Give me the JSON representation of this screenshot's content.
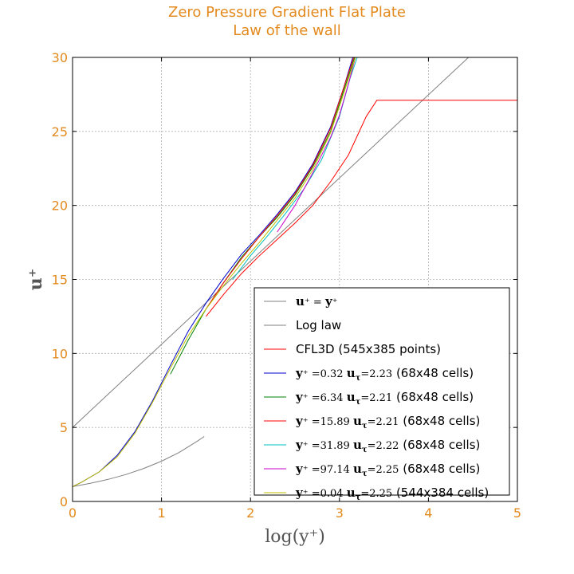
{
  "chart_data": {
    "type": "line",
    "title": "Zero Pressure Gradient Flat Plate",
    "subtitle": "Law of the wall",
    "xlabel": "log(y⁺)",
    "ylabel": "u⁺",
    "xlim": [
      0,
      5
    ],
    "ylim": [
      0,
      30
    ],
    "x_ticks": [
      "0",
      "1",
      "2",
      "3",
      "4",
      "5"
    ],
    "y_ticks": [
      "0",
      "5",
      "10",
      "15",
      "20",
      "25",
      "30"
    ],
    "grid": true,
    "legend_position": "bottom-right",
    "accent_color": "#e38a1e",
    "series": [
      {
        "name": "u⁺ = y⁺",
        "legend_math": true,
        "legend_main": "u",
        "legend_rest": "⁺ = ",
        "legend_main2": "y",
        "legend_rest2": "⁺",
        "color": "#808080",
        "x": [
          0,
          0.2,
          0.4,
          0.6,
          0.8,
          1.0,
          1.2,
          1.4,
          1.48
        ],
        "y": [
          1.0,
          1.22,
          1.49,
          1.82,
          2.23,
          2.72,
          3.32,
          4.06,
          4.39
        ]
      },
      {
        "name": "Log law",
        "color": "#808080",
        "x": [
          0,
          4.45
        ],
        "y": [
          5.0,
          30.0
        ]
      },
      {
        "name": "CFL3D (545x385 points)",
        "color": "#ff0000",
        "x": [
          1.5,
          1.7,
          1.9,
          2.1,
          2.3,
          2.5,
          2.7,
          2.9,
          3.1,
          3.3,
          3.42,
          3.5,
          4.0,
          5.0
        ],
        "y": [
          12.5,
          14.0,
          15.4,
          16.6,
          17.7,
          18.8,
          20.0,
          21.6,
          23.4,
          26.0,
          27.1,
          27.1,
          27.1,
          27.1
        ]
      },
      {
        "name": "y⁺ =0.32 uτ =2.23 (68x48 cells)",
        "legend_math": true,
        "legend_main": "y",
        "legend_rest": "⁺ =0.32 ",
        "legend_main2": "u",
        "legend_sub": "τ",
        "legend_rest2": "=2.23",
        "legend_tail": " (68x48 cells)",
        "color": "#0000cc",
        "x": [
          0,
          0.1,
          0.3,
          0.5,
          0.7,
          0.9,
          1.1,
          1.3,
          1.5,
          1.7,
          1.9,
          2.1,
          2.3,
          2.5,
          2.7,
          2.9,
          3.05,
          3.15
        ],
        "y": [
          1.0,
          1.3,
          2.0,
          3.1,
          4.7,
          6.8,
          9.2,
          11.5,
          13.4,
          15.1,
          16.7,
          18.0,
          19.4,
          20.9,
          22.8,
          25.3,
          28.0,
          30.0
        ]
      },
      {
        "name": "y⁺ =6.34 uτ =2.21 (68x48 cells)",
        "legend_math": true,
        "legend_main": "y",
        "legend_rest": "⁺ =6.34 ",
        "legend_main2": "u",
        "legend_sub": "τ",
        "legend_rest2": "=2.21",
        "legend_tail": " (68x48 cells)",
        "color": "#008000",
        "x": [
          1.1,
          1.3,
          1.5,
          1.7,
          1.9,
          2.1,
          2.3,
          2.5,
          2.7,
          2.9,
          3.05,
          3.17
        ],
        "y": [
          8.6,
          10.9,
          13.0,
          14.8,
          16.5,
          17.9,
          19.2,
          20.7,
          22.6,
          25.0,
          27.8,
          30.0
        ]
      },
      {
        "name": "y⁺ =15.89 uτ =2.21 (68x48 cells)",
        "legend_math": true,
        "legend_main": "y",
        "legend_rest": "⁺ =15.89 ",
        "legend_main2": "u",
        "legend_sub": "τ",
        "legend_rest2": "=2.21",
        "legend_tail": " (68x48 cells)",
        "color": "#ff0000",
        "x": [
          1.5,
          1.7,
          1.9,
          2.1,
          2.3,
          2.5,
          2.7,
          2.9,
          3.05,
          3.16
        ],
        "y": [
          13.0,
          14.8,
          16.4,
          17.9,
          19.3,
          20.8,
          22.7,
          25.2,
          28.0,
          30.0
        ]
      },
      {
        "name": "y⁺ =31.89 uτ =2.22 (68x48 cells)",
        "legend_math": true,
        "legend_main": "y",
        "legend_rest": "⁺ =31.89 ",
        "legend_main2": "u",
        "legend_sub": "τ",
        "legend_rest2": "=2.22",
        "legend_tail": " (68x48 cells)",
        "color": "#00bfbf",
        "x": [
          1.8,
          2.0,
          2.2,
          2.4,
          2.6,
          2.8,
          3.0,
          3.12,
          3.2
        ],
        "y": [
          15.0,
          16.6,
          18.0,
          19.5,
          21.1,
          23.1,
          26.0,
          28.6,
          30.0
        ]
      },
      {
        "name": "y⁺ =97.14 uτ =2.25 (68x48 cells)",
        "legend_math": true,
        "legend_main": "y",
        "legend_rest": "⁺ =97.14 ",
        "legend_main2": "u",
        "legend_sub": "τ",
        "legend_rest2": "=2.25",
        "legend_tail": " (68x48 cells)",
        "color": "#cc00cc",
        "x": [
          2.3,
          2.5,
          2.7,
          2.9,
          3.0,
          3.1,
          3.18
        ],
        "y": [
          18.2,
          20.0,
          22.2,
          24.6,
          26.1,
          28.2,
          30.0
        ]
      },
      {
        "name": "y⁺ =0.04 uτ =2.25 (544x384 cells)",
        "legend_math": true,
        "legend_main": "y",
        "legend_rest": "⁺ =0.04 ",
        "legend_main2": "u",
        "legend_sub": "τ",
        "legend_rest2": "=2.25",
        "legend_tail": " (544x384 cells)",
        "color": "#bfbf00",
        "x": [
          0,
          0.1,
          0.3,
          0.5,
          0.7,
          0.9,
          1.1,
          1.3,
          1.5,
          1.7,
          1.9,
          2.1,
          2.3,
          2.5,
          2.7,
          2.9,
          3.05,
          3.18
        ],
        "y": [
          1.0,
          1.3,
          2.0,
          3.0,
          4.6,
          6.7,
          9.0,
          11.2,
          13.0,
          14.6,
          16.1,
          17.5,
          19.0,
          20.5,
          22.4,
          24.9,
          27.6,
          30.0
        ]
      }
    ]
  }
}
